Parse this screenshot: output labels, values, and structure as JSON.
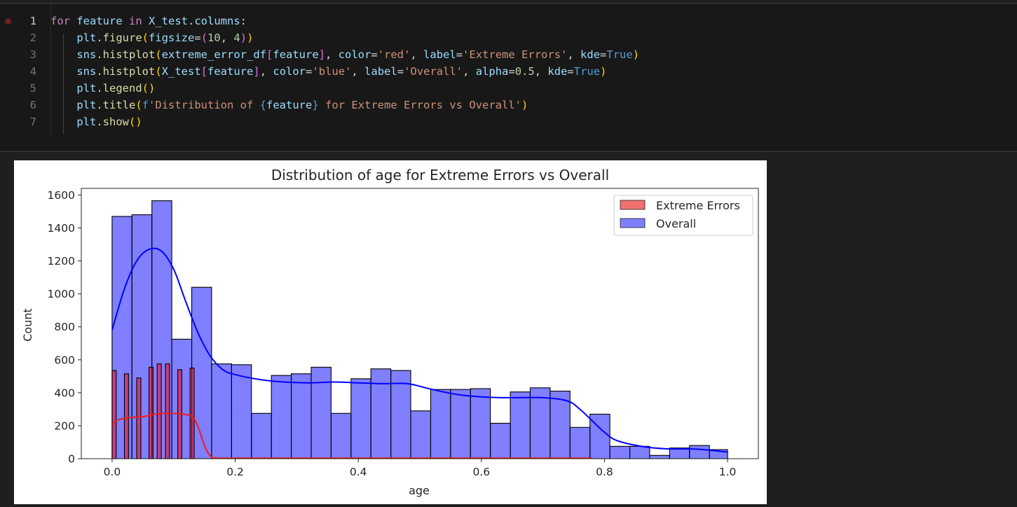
{
  "editor": {
    "lines": [
      {
        "num": "1",
        "tokens": [
          [
            "k",
            "for"
          ],
          [
            "v",
            " feature"
          ],
          [
            "k",
            " in"
          ],
          [
            "v",
            " X_test"
          ],
          [
            "t",
            "."
          ],
          [
            "v",
            "columns"
          ],
          [
            "t",
            ":"
          ]
        ]
      },
      {
        "num": "2",
        "tokens": [
          [
            "t",
            "    "
          ],
          [
            "v",
            "plt"
          ],
          [
            "t",
            "."
          ],
          [
            "f",
            "figure"
          ],
          [
            "p1",
            "("
          ],
          [
            "v",
            "figsize"
          ],
          [
            "t",
            "="
          ],
          [
            "p2",
            "("
          ],
          [
            "n",
            "10"
          ],
          [
            "t",
            ", "
          ],
          [
            "n",
            "4"
          ],
          [
            "p2",
            ")"
          ],
          [
            "p1",
            ")"
          ]
        ]
      },
      {
        "num": "3",
        "tokens": [
          [
            "t",
            "    "
          ],
          [
            "v",
            "sns"
          ],
          [
            "t",
            "."
          ],
          [
            "f",
            "histplot"
          ],
          [
            "p1",
            "("
          ],
          [
            "v",
            "extreme_error_df"
          ],
          [
            "p2",
            "["
          ],
          [
            "v",
            "feature"
          ],
          [
            "p2",
            "]"
          ],
          [
            "t",
            ", "
          ],
          [
            "v",
            "color"
          ],
          [
            "t",
            "="
          ],
          [
            "s",
            "'red'"
          ],
          [
            "t",
            ", "
          ],
          [
            "v",
            "label"
          ],
          [
            "t",
            "="
          ],
          [
            "s",
            "'Extreme Errors'"
          ],
          [
            "t",
            ", "
          ],
          [
            "v",
            "kde"
          ],
          [
            "t",
            "="
          ],
          [
            "b",
            "True"
          ],
          [
            "p1",
            ")"
          ]
        ]
      },
      {
        "num": "4",
        "tokens": [
          [
            "t",
            "    "
          ],
          [
            "v",
            "sns"
          ],
          [
            "t",
            "."
          ],
          [
            "f",
            "histplot"
          ],
          [
            "p1",
            "("
          ],
          [
            "v",
            "X_test"
          ],
          [
            "p2",
            "["
          ],
          [
            "v",
            "feature"
          ],
          [
            "p2",
            "]"
          ],
          [
            "t",
            ", "
          ],
          [
            "v",
            "color"
          ],
          [
            "t",
            "="
          ],
          [
            "s",
            "'blue'"
          ],
          [
            "t",
            ", "
          ],
          [
            "v",
            "label"
          ],
          [
            "t",
            "="
          ],
          [
            "s",
            "'Overall'"
          ],
          [
            "t",
            ", "
          ],
          [
            "v",
            "alpha"
          ],
          [
            "t",
            "="
          ],
          [
            "n",
            "0.5"
          ],
          [
            "t",
            ", "
          ],
          [
            "v",
            "kde"
          ],
          [
            "t",
            "="
          ],
          [
            "b",
            "True"
          ],
          [
            "p1",
            ")"
          ]
        ]
      },
      {
        "num": "5",
        "tokens": [
          [
            "t",
            "    "
          ],
          [
            "v",
            "plt"
          ],
          [
            "t",
            "."
          ],
          [
            "f",
            "legend"
          ],
          [
            "p1",
            "()"
          ]
        ]
      },
      {
        "num": "6",
        "tokens": [
          [
            "t",
            "    "
          ],
          [
            "v",
            "plt"
          ],
          [
            "t",
            "."
          ],
          [
            "f",
            "title"
          ],
          [
            "p1",
            "("
          ],
          [
            "b",
            "f"
          ],
          [
            "s",
            "'Distribution of "
          ],
          [
            "b",
            "{"
          ],
          [
            "v",
            "feature"
          ],
          [
            "b",
            "}"
          ],
          [
            "s",
            " for Extreme Errors vs Overall'"
          ],
          [
            "p1",
            ")"
          ]
        ]
      },
      {
        "num": "7",
        "tokens": [
          [
            "t",
            "    "
          ],
          [
            "v",
            "plt"
          ],
          [
            "t",
            "."
          ],
          [
            "f",
            "show"
          ],
          [
            "p1",
            "()"
          ]
        ]
      }
    ]
  },
  "chart_data": {
    "type": "bar",
    "title": "Distribution of age for Extreme Errors vs Overall",
    "xlabel": "age",
    "ylabel": "Count",
    "xlim": [
      -0.05,
      1.05
    ],
    "ylim": [
      0,
      1640
    ],
    "xticks": [
      0.0,
      0.2,
      0.4,
      0.6,
      0.8,
      1.0
    ],
    "xtick_labels": [
      "0.0",
      "0.2",
      "0.4",
      "0.6",
      "0.8",
      "1.0"
    ],
    "yticks": [
      0,
      200,
      400,
      600,
      800,
      1000,
      1200,
      1400,
      1600
    ],
    "ytick_labels": [
      "0",
      "200",
      "400",
      "600",
      "800",
      "1000",
      "1200",
      "1400",
      "1600"
    ],
    "legend_position": "top-right",
    "legend": [
      {
        "label": "Extreme Errors",
        "color": "#f07070"
      },
      {
        "label": "Overall",
        "color": "#7f7ffb"
      }
    ],
    "series": [
      {
        "name": "Overall",
        "color": "#0000ff",
        "bin_edges": [
          0.0,
          0.0323,
          0.0647,
          0.097,
          0.1294,
          0.1617,
          0.1941,
          0.2264,
          0.2588,
          0.2911,
          0.3235,
          0.3558,
          0.3882,
          0.4205,
          0.4529,
          0.4852,
          0.5176,
          0.5499,
          0.5823,
          0.6146,
          0.647,
          0.6793,
          0.7117,
          0.744,
          0.7764,
          0.8087,
          0.8411,
          0.8734,
          0.9058,
          0.9381,
          0.9705,
          1.0
        ],
        "counts": [
          1470,
          1480,
          1565,
          725,
          1040,
          575,
          570,
          275,
          505,
          515,
          555,
          275,
          485,
          545,
          535,
          290,
          420,
          420,
          425,
          215,
          405,
          430,
          410,
          190,
          270,
          75,
          75,
          20,
          65,
          80,
          55
        ],
        "kde": [
          [
            0.0,
            780
          ],
          [
            0.02,
            1030
          ],
          [
            0.04,
            1200
          ],
          [
            0.06,
            1270
          ],
          [
            0.08,
            1260
          ],
          [
            0.1,
            1150
          ],
          [
            0.12,
            950
          ],
          [
            0.14,
            760
          ],
          [
            0.16,
            620
          ],
          [
            0.18,
            540
          ],
          [
            0.2,
            510
          ],
          [
            0.24,
            480
          ],
          [
            0.28,
            465
          ],
          [
            0.32,
            460
          ],
          [
            0.36,
            465
          ],
          [
            0.4,
            460
          ],
          [
            0.44,
            455
          ],
          [
            0.48,
            455
          ],
          [
            0.52,
            420
          ],
          [
            0.56,
            390
          ],
          [
            0.6,
            375
          ],
          [
            0.64,
            370
          ],
          [
            0.7,
            370
          ],
          [
            0.74,
            350
          ],
          [
            0.76,
            300
          ],
          [
            0.78,
            230
          ],
          [
            0.8,
            160
          ],
          [
            0.82,
            110
          ],
          [
            0.86,
            75
          ],
          [
            0.9,
            60
          ],
          [
            0.95,
            58
          ],
          [
            1.0,
            40
          ]
        ]
      },
      {
        "name": "Extreme Errors",
        "color": "#ff0000",
        "bin_edges": [
          0.0,
          0.0067,
          0.0133,
          0.02,
          0.0267,
          0.0333,
          0.04,
          0.0467,
          0.0533,
          0.06,
          0.0667,
          0.0733,
          0.08,
          0.0867,
          0.0933,
          0.1,
          0.1067,
          0.1133,
          0.12,
          0.1267,
          0.1333
        ],
        "counts": [
          535,
          0,
          0,
          515,
          0,
          0,
          490,
          0,
          0,
          555,
          0,
          575,
          0,
          575,
          0,
          0,
          540,
          0,
          0,
          550
        ],
        "kde": [
          [
            0.0,
            205
          ],
          [
            0.01,
            235
          ],
          [
            0.03,
            250
          ],
          [
            0.05,
            255
          ],
          [
            0.07,
            270
          ],
          [
            0.09,
            275
          ],
          [
            0.11,
            272
          ],
          [
            0.13,
            255
          ],
          [
            0.14,
            190
          ],
          [
            0.15,
            80
          ],
          [
            0.16,
            15
          ],
          [
            0.17,
            4
          ],
          [
            0.2,
            3
          ],
          [
            0.4,
            3
          ],
          [
            0.6,
            3
          ],
          [
            0.78,
            3
          ]
        ]
      }
    ]
  }
}
